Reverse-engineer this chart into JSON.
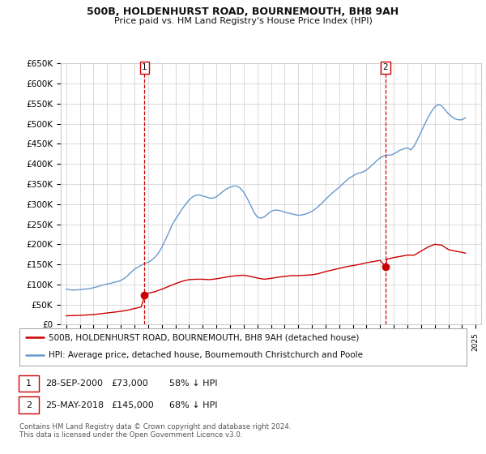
{
  "title": "500B, HOLDENHURST ROAD, BOURNEMOUTH, BH8 9AH",
  "subtitle": "Price paid vs. HM Land Registry's House Price Index (HPI)",
  "ylabel_ticks": [
    "£0",
    "£50K",
    "£100K",
    "£150K",
    "£200K",
    "£250K",
    "£300K",
    "£350K",
    "£400K",
    "£450K",
    "£500K",
    "£550K",
    "£600K",
    "£650K"
  ],
  "ylim": [
    0,
    650000
  ],
  "ytick_vals": [
    0,
    50000,
    100000,
    150000,
    200000,
    250000,
    300000,
    350000,
    400000,
    450000,
    500000,
    550000,
    600000,
    650000
  ],
  "hpi_color": "#6699cc",
  "price_color": "#cc0000",
  "vline_color": "#cc0000",
  "background_color": "#ffffff",
  "grid_color": "#cccccc",
  "sale1_date_num": 2000.74,
  "sale1_price": 73000,
  "sale1_label": "1",
  "sale2_date_num": 2018.39,
  "sale2_price": 145000,
  "sale2_label": "2",
  "legend_line1": "500B, HOLDENHURST ROAD, BOURNEMOUTH, BH8 9AH (detached house)",
  "legend_line2": "HPI: Average price, detached house, Bournemouth Christchurch and Poole",
  "footer": "Contains HM Land Registry data © Crown copyright and database right 2024.\nThis data is licensed under the Open Government Licence v3.0.",
  "hpi_data": {
    "years": [
      1995.0,
      1995.25,
      1995.5,
      1995.75,
      1996.0,
      1996.25,
      1996.5,
      1996.75,
      1997.0,
      1997.25,
      1997.5,
      1997.75,
      1998.0,
      1998.25,
      1998.5,
      1998.75,
      1999.0,
      1999.25,
      1999.5,
      1999.75,
      2000.0,
      2000.25,
      2000.5,
      2000.75,
      2001.0,
      2001.25,
      2001.5,
      2001.75,
      2002.0,
      2002.25,
      2002.5,
      2002.75,
      2003.0,
      2003.25,
      2003.5,
      2003.75,
      2004.0,
      2004.25,
      2004.5,
      2004.75,
      2005.0,
      2005.25,
      2005.5,
      2005.75,
      2006.0,
      2006.25,
      2006.5,
      2006.75,
      2007.0,
      2007.25,
      2007.5,
      2007.75,
      2008.0,
      2008.25,
      2008.5,
      2008.75,
      2009.0,
      2009.25,
      2009.5,
      2009.75,
      2010.0,
      2010.25,
      2010.5,
      2010.75,
      2011.0,
      2011.25,
      2011.5,
      2011.75,
      2012.0,
      2012.25,
      2012.5,
      2012.75,
      2013.0,
      2013.25,
      2013.5,
      2013.75,
      2014.0,
      2014.25,
      2014.5,
      2014.75,
      2015.0,
      2015.25,
      2015.5,
      2015.75,
      2016.0,
      2016.25,
      2016.5,
      2016.75,
      2017.0,
      2017.25,
      2017.5,
      2017.75,
      2018.0,
      2018.25,
      2018.5,
      2018.75,
      2019.0,
      2019.25,
      2019.5,
      2019.75,
      2020.0,
      2020.25,
      2020.5,
      2020.75,
      2021.0,
      2021.25,
      2021.5,
      2021.75,
      2022.0,
      2022.25,
      2022.5,
      2022.75,
      2023.0,
      2023.25,
      2023.5,
      2023.75,
      2024.0,
      2024.25
    ],
    "values": [
      88000,
      87000,
      86000,
      86500,
      87000,
      88000,
      89000,
      90000,
      92000,
      94000,
      97000,
      99000,
      101000,
      103000,
      105000,
      107000,
      110000,
      115000,
      122000,
      130000,
      138000,
      143000,
      148000,
      152000,
      155000,
      160000,
      168000,
      178000,
      192000,
      210000,
      228000,
      248000,
      262000,
      275000,
      288000,
      300000,
      310000,
      318000,
      322000,
      323000,
      320000,
      318000,
      315000,
      315000,
      318000,
      325000,
      332000,
      338000,
      342000,
      345000,
      345000,
      340000,
      330000,
      315000,
      298000,
      280000,
      268000,
      265000,
      268000,
      275000,
      282000,
      285000,
      285000,
      283000,
      280000,
      278000,
      276000,
      274000,
      272000,
      273000,
      275000,
      278000,
      282000,
      288000,
      295000,
      303000,
      312000,
      320000,
      328000,
      335000,
      342000,
      350000,
      358000,
      365000,
      370000,
      375000,
      378000,
      380000,
      385000,
      392000,
      400000,
      408000,
      415000,
      420000,
      422000,
      422000,
      425000,
      430000,
      435000,
      438000,
      440000,
      435000,
      445000,
      462000,
      480000,
      498000,
      515000,
      530000,
      542000,
      548000,
      545000,
      535000,
      525000,
      518000,
      512000,
      510000,
      510000,
      515000
    ]
  },
  "price_data": {
    "years": [
      1995.0,
      1995.25,
      1995.5,
      1995.75,
      1996.0,
      1996.5,
      1997.0,
      1997.5,
      1998.0,
      1998.5,
      1999.0,
      1999.5,
      2000.0,
      2000.5,
      2000.74,
      2001.0,
      2001.5,
      2002.0,
      2002.5,
      2003.0,
      2003.5,
      2004.0,
      2004.5,
      2005.0,
      2005.5,
      2006.0,
      2006.5,
      2007.0,
      2007.5,
      2008.0,
      2008.5,
      2009.0,
      2009.5,
      2010.0,
      2010.5,
      2011.0,
      2011.5,
      2012.0,
      2012.5,
      2013.0,
      2013.5,
      2014.0,
      2014.5,
      2015.0,
      2015.5,
      2016.0,
      2016.5,
      2017.0,
      2017.5,
      2018.0,
      2018.39,
      2018.5,
      2019.0,
      2019.5,
      2020.0,
      2020.5,
      2021.0,
      2021.5,
      2022.0,
      2022.5,
      2023.0,
      2023.5,
      2024.0,
      2024.25
    ],
    "values": [
      22000,
      22200,
      22500,
      22800,
      23000,
      24000,
      25000,
      27000,
      29000,
      31000,
      33000,
      36000,
      40000,
      44000,
      73000,
      78000,
      82000,
      88000,
      95000,
      102000,
      108000,
      112000,
      113000,
      113000,
      112000,
      114000,
      117000,
      120000,
      122000,
      123000,
      120000,
      116000,
      113000,
      115000,
      118000,
      120000,
      122000,
      122000,
      123000,
      124000,
      127000,
      132000,
      136000,
      140000,
      144000,
      147000,
      150000,
      154000,
      157000,
      160000,
      145000,
      163000,
      167000,
      170000,
      173000,
      173000,
      183000,
      193000,
      200000,
      198000,
      187000,
      183000,
      180000,
      178000
    ]
  }
}
